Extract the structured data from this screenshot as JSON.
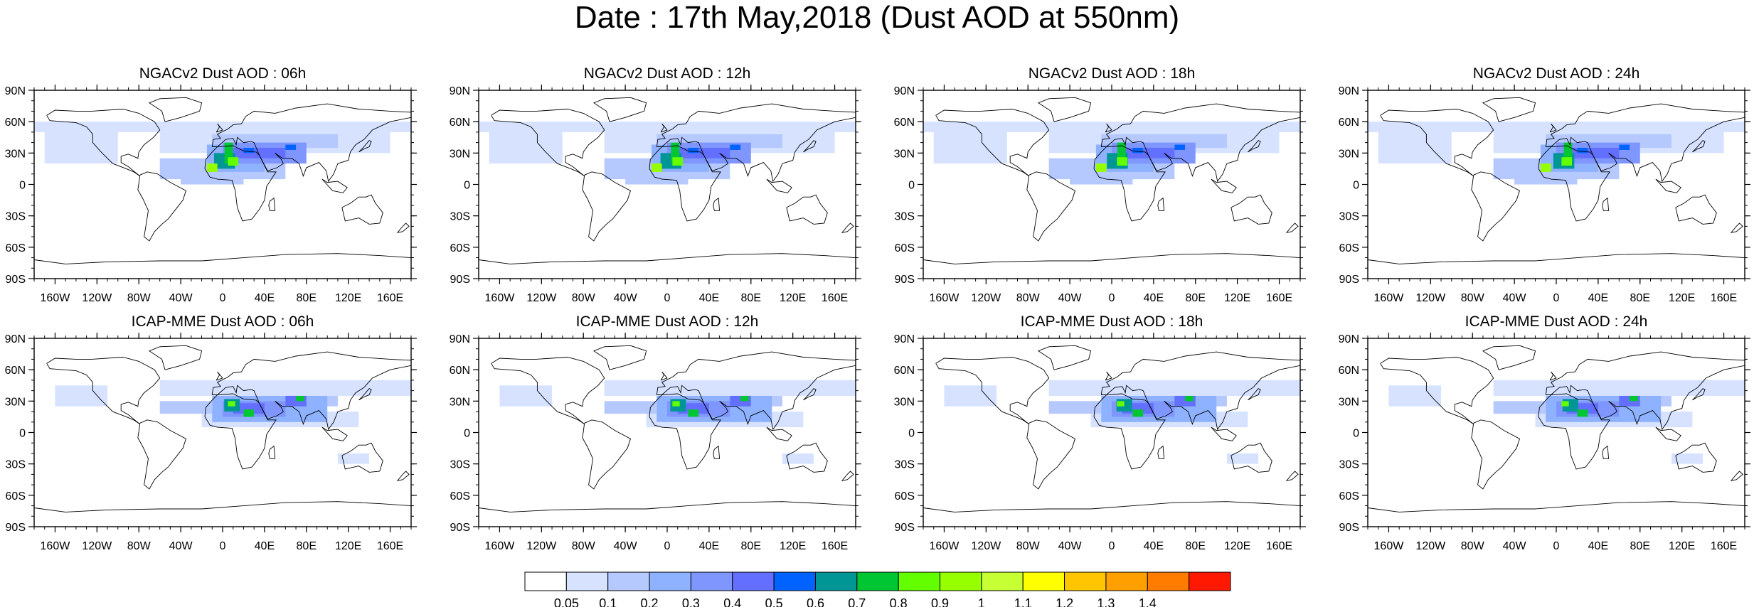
{
  "title": "Date : 17th May,2018 (Dust AOD at 550nm)",
  "panels": [
    {
      "title": "NGACv2 Dust AOD : 06h",
      "model": "NGAC",
      "hour": 6
    },
    {
      "title": "NGACv2 Dust AOD : 12h",
      "model": "NGAC",
      "hour": 12
    },
    {
      "title": "NGACv2 Dust AOD : 18h",
      "model": "NGAC",
      "hour": 18
    },
    {
      "title": "NGACv2 Dust AOD : 24h",
      "model": "NGAC",
      "hour": 24
    },
    {
      "title": "ICAP-MME Dust AOD : 06h",
      "model": "ICAP",
      "hour": 6
    },
    {
      "title": "ICAP-MME Dust AOD : 12h",
      "model": "ICAP",
      "hour": 12
    },
    {
      "title": "ICAP-MME Dust AOD : 18h",
      "model": "ICAP",
      "hour": 18
    },
    {
      "title": "ICAP-MME Dust AOD : 24h",
      "model": "ICAP",
      "hour": 24
    }
  ],
  "lat_ticks": [
    "90N",
    "60N",
    "30N",
    "0",
    "30S",
    "60S",
    "90S"
  ],
  "lon_ticks": [
    "160W",
    "120W",
    "80W",
    "40W",
    "0",
    "40E",
    "80E",
    "120E",
    "160E"
  ],
  "lat_values": [
    90,
    60,
    30,
    0,
    -30,
    -60,
    -90
  ],
  "lon_values": [
    -160,
    -120,
    -80,
    -40,
    0,
    40,
    80,
    120,
    160
  ],
  "colorbar": {
    "labels": [
      "0.05",
      "0.1",
      "0.2",
      "0.3",
      "0.4",
      "0.5",
      "0.6",
      "0.7",
      "0.8",
      "0.9",
      "1",
      "1.1",
      "1.2",
      "1.3",
      "1.4"
    ],
    "colors": [
      "#ffffff",
      "#d6e2ff",
      "#b5c9ff",
      "#8eb2ff",
      "#7f96ff",
      "#6370ff",
      "#0063ff",
      "#009696",
      "#00c633",
      "#63ff00",
      "#96ff00",
      "#c6ff33",
      "#ffff00",
      "#ffc600",
      "#ffa000",
      "#ff7c00",
      "#ff1900"
    ]
  }
}
